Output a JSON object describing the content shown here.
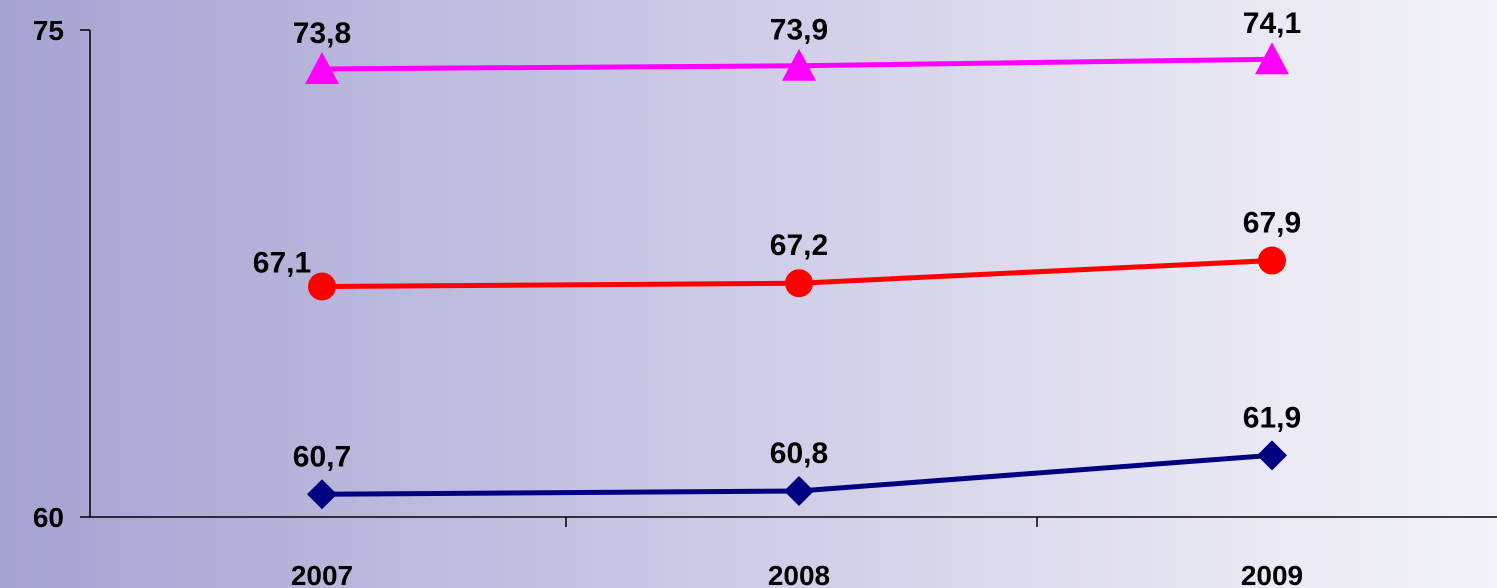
{
  "chart_data": {
    "type": "line",
    "categories": [
      "2007",
      "2008",
      "2009"
    ],
    "ylim": [
      60,
      75
    ],
    "y_ticks": [
      "60",
      "75"
    ],
    "title": "",
    "xlabel": "",
    "ylabel": "",
    "grid": false,
    "series": [
      {
        "values": [
          73.8,
          73.9,
          74.1
        ],
        "labels": [
          "73,8",
          "73,9",
          "74,1"
        ],
        "color": "#ff00ff",
        "marker": "triangle"
      },
      {
        "values": [
          67.1,
          67.2,
          67.9
        ],
        "labels": [
          "67,1",
          "67,2",
          "67,9"
        ],
        "color": "#ff0000",
        "marker": "circle"
      },
      {
        "values": [
          60.7,
          60.8,
          61.9
        ],
        "labels": [
          "60,7",
          "60,8",
          "61,9"
        ],
        "color": "#000080",
        "marker": "diamond"
      }
    ]
  }
}
